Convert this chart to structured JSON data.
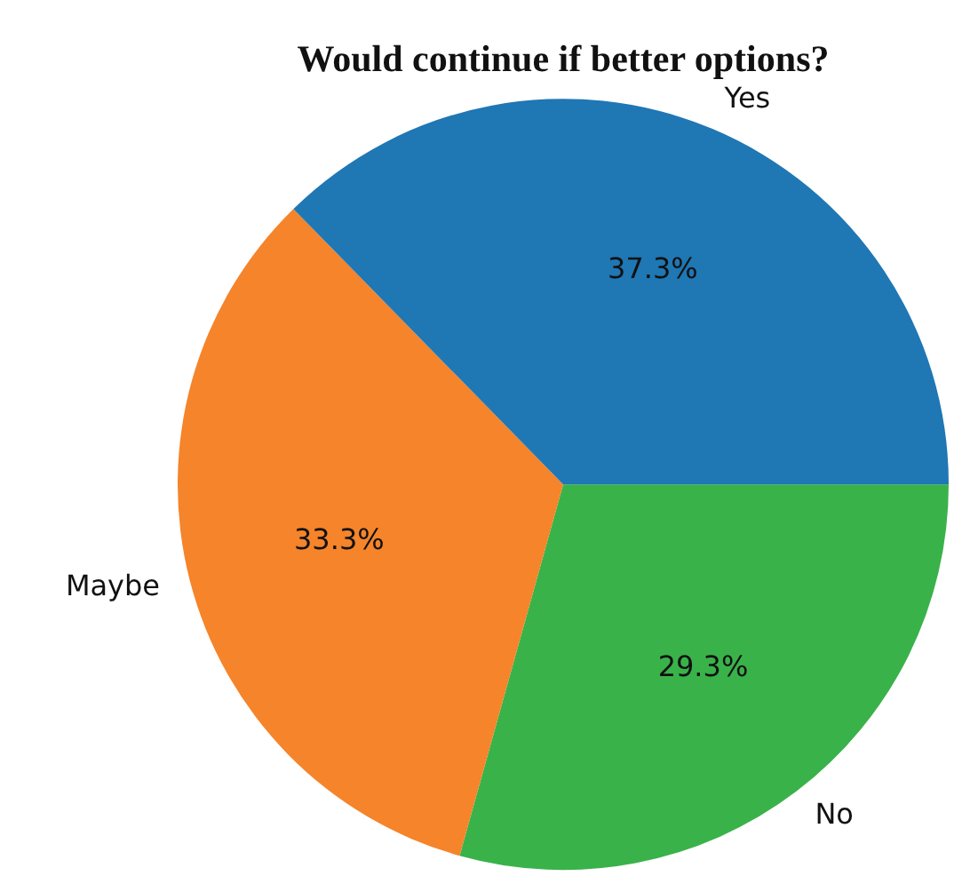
{
  "chart_data": {
    "type": "pie",
    "title": "Would continue if better options?",
    "categories": [
      "Yes",
      "Maybe",
      "No"
    ],
    "values": [
      37.3,
      33.3,
      29.3
    ],
    "value_labels": [
      "37.3%",
      "33.3%",
      "29.3%"
    ],
    "colors": [
      "#1f77b4",
      "#f5842a",
      "#3ab24a"
    ]
  }
}
